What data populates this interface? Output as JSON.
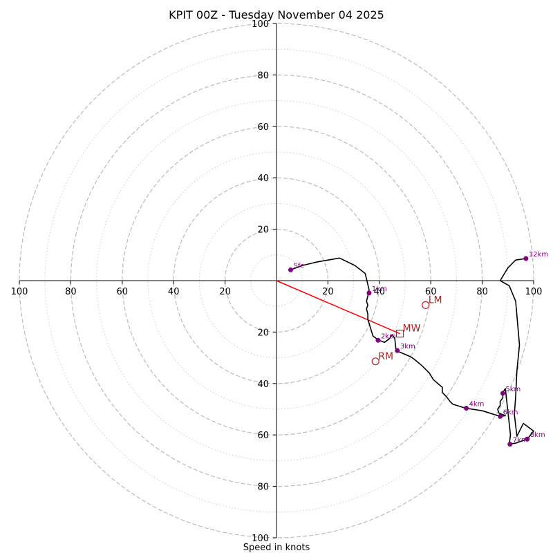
{
  "chart_data": {
    "type": "hodograph",
    "title": "KPIT 00Z - Tuesday November 04 2025",
    "xlabel": "Speed in knots",
    "axis_range": [
      -100,
      100
    ],
    "ring_radii_major": [
      20,
      40,
      60,
      80,
      100
    ],
    "ring_radii_minor": [
      10,
      30,
      50,
      70,
      90
    ],
    "x_ticks": [
      {
        "value": -100,
        "label": "100"
      },
      {
        "value": -80,
        "label": "80"
      },
      {
        "value": -60,
        "label": "60"
      },
      {
        "value": -40,
        "label": "40"
      },
      {
        "value": -20,
        "label": "20"
      },
      {
        "value": 20,
        "label": "20"
      },
      {
        "value": 40,
        "label": "40"
      },
      {
        "value": 60,
        "label": "60"
      },
      {
        "value": 80,
        "label": "80"
      },
      {
        "value": 100,
        "label": "100"
      }
    ],
    "y_ticks": [
      {
        "value": 100,
        "label": "100"
      },
      {
        "value": 80,
        "label": "80"
      },
      {
        "value": 60,
        "label": "60"
      },
      {
        "value": 40,
        "label": "40"
      },
      {
        "value": 20,
        "label": "20"
      },
      {
        "value": -20,
        "label": "20"
      },
      {
        "value": -40,
        "label": "40"
      },
      {
        "value": -60,
        "label": "60"
      },
      {
        "value": -80,
        "label": "80"
      },
      {
        "value": -100,
        "label": "100"
      }
    ],
    "hodograph_trace": [
      [
        5.5,
        4.2
      ],
      [
        10,
        5.9
      ],
      [
        16,
        7.3
      ],
      [
        24.5,
        8.8
      ],
      [
        30.5,
        5.9
      ],
      [
        34.5,
        2.8
      ],
      [
        36,
        -3.5
      ],
      [
        35.5,
        -6
      ],
      [
        35,
        -8
      ],
      [
        35.5,
        -9.5
      ],
      [
        35,
        -11
      ],
      [
        35.5,
        -13
      ],
      [
        35.5,
        -15
      ],
      [
        37.5,
        -21.5
      ],
      [
        39.5,
        -23
      ],
      [
        42,
        -24
      ],
      [
        44,
        -22.5
      ],
      [
        45,
        -21
      ],
      [
        46,
        -22.5
      ],
      [
        46.5,
        -27.2
      ],
      [
        52,
        -29.5
      ],
      [
        53.5,
        -30.5
      ],
      [
        56.5,
        -33
      ],
      [
        59.5,
        -36
      ],
      [
        61,
        -38.5
      ],
      [
        64.5,
        -41.5
      ],
      [
        64.5,
        -43.5
      ],
      [
        66,
        -45
      ],
      [
        67.5,
        -47
      ],
      [
        68.5,
        -48
      ],
      [
        73.5,
        -49.6
      ],
      [
        80,
        -50.6
      ],
      [
        87,
        -52.8
      ],
      [
        89,
        -52.5
      ],
      [
        86.5,
        -51.5
      ],
      [
        86,
        -50
      ],
      [
        87,
        -48.5
      ],
      [
        87,
        -47
      ],
      [
        88,
        -45.5
      ],
      [
        88,
        -43.5
      ],
      [
        89,
        -42
      ],
      [
        91,
        -60
      ],
      [
        90.5,
        -63.6
      ],
      [
        93,
        -63.2
      ],
      [
        97.5,
        -61.6
      ],
      [
        100,
        -58.5
      ],
      [
        96,
        -55.5
      ],
      [
        93.5,
        -60.5
      ],
      [
        92.5,
        -52
      ],
      [
        93,
        -45
      ],
      [
        93.5,
        -35
      ],
      [
        94.5,
        -25
      ],
      [
        93,
        -8
      ],
      [
        90.5,
        -2
      ],
      [
        87,
        0
      ],
      [
        90,
        5
      ],
      [
        93,
        8
      ],
      [
        97,
        8.6
      ]
    ],
    "height_markers": [
      {
        "label": "Sfc",
        "u": 5.5,
        "v": 4.2
      },
      {
        "label": "1km",
        "u": 36,
        "v": -4.8
      },
      {
        "label": "2km",
        "u": 39.5,
        "v": -23.2
      },
      {
        "label": "3km",
        "u": 47,
        "v": -27.2
      },
      {
        "label": "4km",
        "u": 73.8,
        "v": -49.6
      },
      {
        "label": "5km",
        "u": 88,
        "v": -43.8
      },
      {
        "label": "6km",
        "u": 87,
        "v": -52.8
      },
      {
        "label": "7km",
        "u": 90.8,
        "v": -63.6
      },
      {
        "label": "8km",
        "u": 97.5,
        "v": -61.6
      },
      {
        "label": "12km",
        "u": 97,
        "v": 8.6
      }
    ],
    "storm_motions": [
      {
        "label": "LM",
        "u": 58,
        "v": -9.5,
        "marker": "circle"
      },
      {
        "label": "MW",
        "u": 48,
        "v": -20.6,
        "marker": "square"
      },
      {
        "label": "RM",
        "u": 38.5,
        "v": -31.4,
        "marker": "circle"
      }
    ],
    "mean_wind_vector": {
      "from": [
        0,
        0
      ],
      "to": [
        48,
        -20.6
      ]
    },
    "colors": {
      "trace": "#000000",
      "height_marker": "#800080",
      "storm_motion": "#b22222",
      "vector": "#ff0000",
      "ring_major": "#bbbbbb",
      "ring_minor": "#cccccc",
      "axes": "#000000"
    }
  }
}
